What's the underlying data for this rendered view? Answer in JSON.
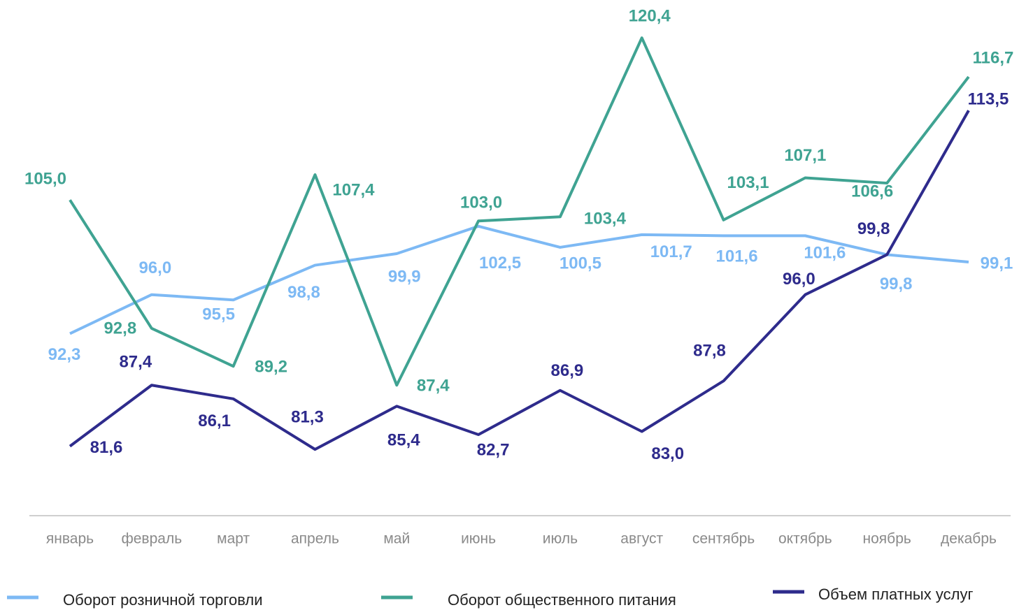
{
  "chart_data": {
    "type": "line",
    "categories": [
      "январь",
      "февраль",
      "март",
      "апрель",
      "май",
      "июнь",
      "июль",
      "август",
      "сентябрь",
      "октябрь",
      "ноябрь",
      "декабрь"
    ],
    "ylim": [
      75,
      124
    ],
    "series": [
      {
        "name": "Оборот розничной торговли",
        "color": "#7db9f4",
        "values": [
          92.3,
          96.0,
          95.5,
          98.8,
          99.9,
          102.5,
          100.5,
          101.7,
          101.6,
          101.6,
          99.8,
          99.1
        ],
        "value_labels": [
          "92,3",
          "96,0",
          "95,5",
          "98,8",
          "99,9",
          "102,5",
          "100,5",
          "101,7",
          "101,6",
          "101,6",
          "99,8",
          "99,1"
        ]
      },
      {
        "name": "Оборот общественного питания",
        "color": "#3fa392",
        "values": [
          105.0,
          92.8,
          89.2,
          107.4,
          87.4,
          103.0,
          103.4,
          120.4,
          103.1,
          107.1,
          106.6,
          116.7
        ],
        "value_labels": [
          "105,0",
          "92,8",
          "89,2",
          "107,4",
          "87,4",
          "103,0",
          "103,4",
          "120,4",
          "103,1",
          "107,1",
          "106,6",
          "116,7"
        ]
      },
      {
        "name": "Объем платных услуг",
        "color": "#2e2b8c",
        "values": [
          81.6,
          87.4,
          86.1,
          81.3,
          85.4,
          82.7,
          86.9,
          83.0,
          87.8,
          96.0,
          99.8,
          113.5
        ],
        "value_labels": [
          "81,6",
          "87,4",
          "86,1",
          "81,3",
          "85,4",
          "82,7",
          "86,9",
          "83,0",
          "87,8",
          "96,0",
          "99,8",
          "113,5"
        ]
      }
    ]
  }
}
